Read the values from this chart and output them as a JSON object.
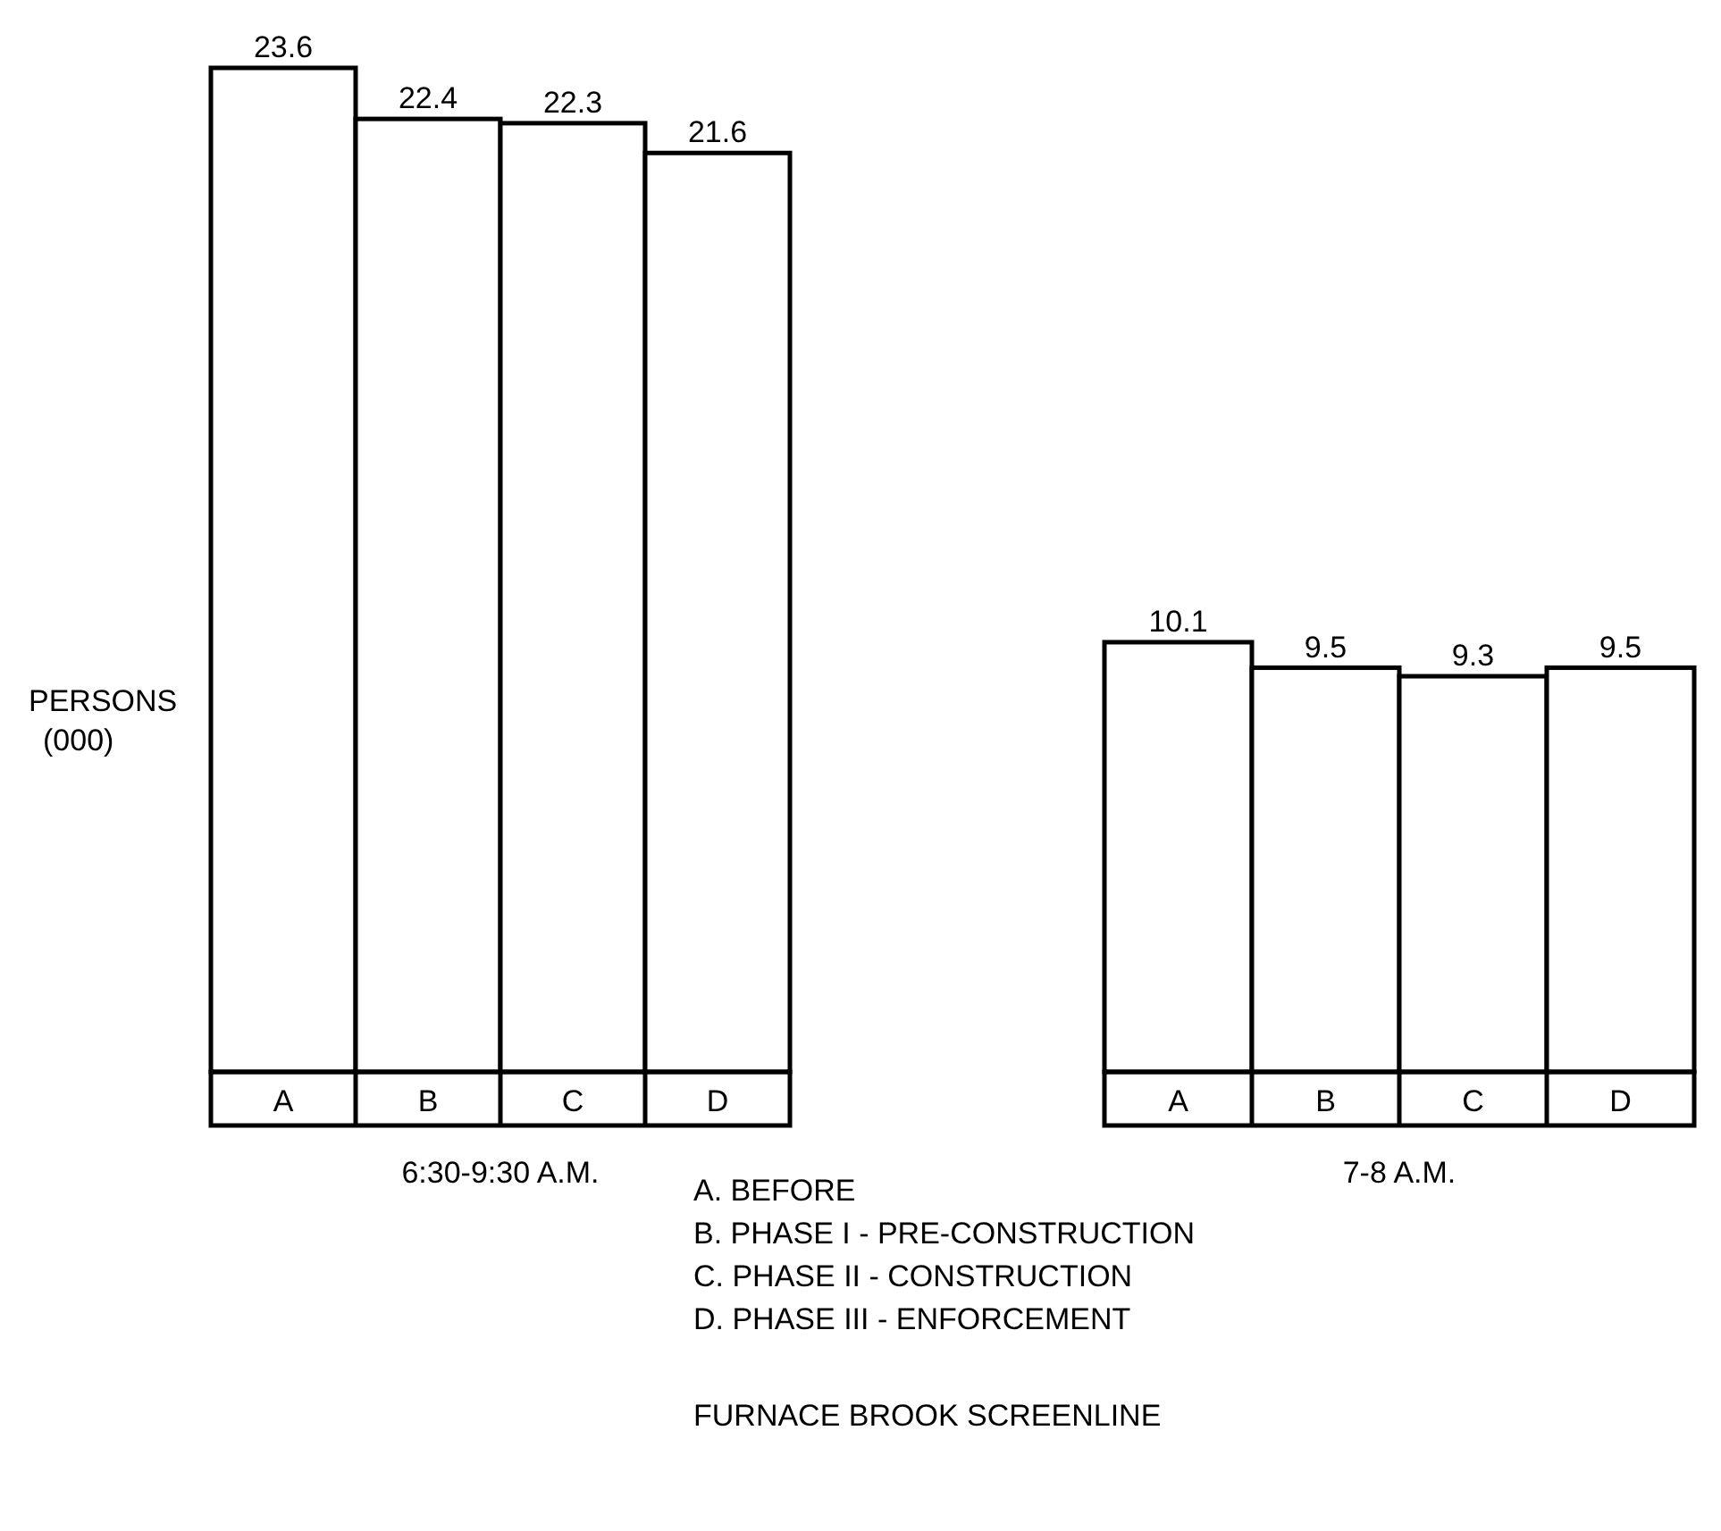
{
  "chart_data": [
    {
      "type": "bar",
      "title": "FURNACE BROOK SCREENLINE",
      "ylabel": "PERSONS (000)",
      "xlabel": "6:30-9:30 A.M.",
      "categories": [
        "A",
        "B",
        "C",
        "D"
      ],
      "values": [
        23.6,
        22.4,
        22.3,
        21.6
      ],
      "color": "#ffffff",
      "data_labels": true,
      "annotations": [
        "A.  BEFORE",
        "B.  PHASE I - PRE-CONSTRUCTION",
        "C.  PHASE II - CONSTRUCTION",
        "D.  PHASE III - ENFORCEMENT"
      ]
    },
    {
      "type": "bar",
      "xlabel": "7-8 A.M.",
      "categories": [
        "A",
        "B",
        "C",
        "D"
      ],
      "values": [
        10.1,
        9.5,
        9.3,
        9.5
      ],
      "color": "#ffffff",
      "data_labels": true
    }
  ]
}
